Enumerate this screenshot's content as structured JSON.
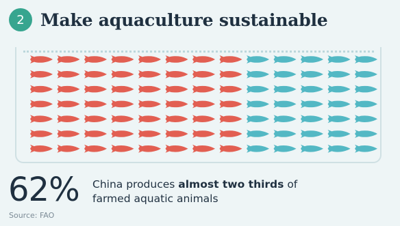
{
  "header": {
    "number": "2",
    "title": "Make aquaculture sustainable"
  },
  "grid": {
    "rows": 7,
    "cols": 13,
    "highlighted_cols": 8,
    "highlight_color": "#e25f52",
    "other_color": "#53b8c4",
    "icon": "fish-icon"
  },
  "stat": {
    "value": "62%"
  },
  "caption": {
    "part1": "China produces ",
    "bold": "almost two thirds",
    "part2": " of",
    "line2": "farmed aquatic animals"
  },
  "source": "Source: FAO"
}
